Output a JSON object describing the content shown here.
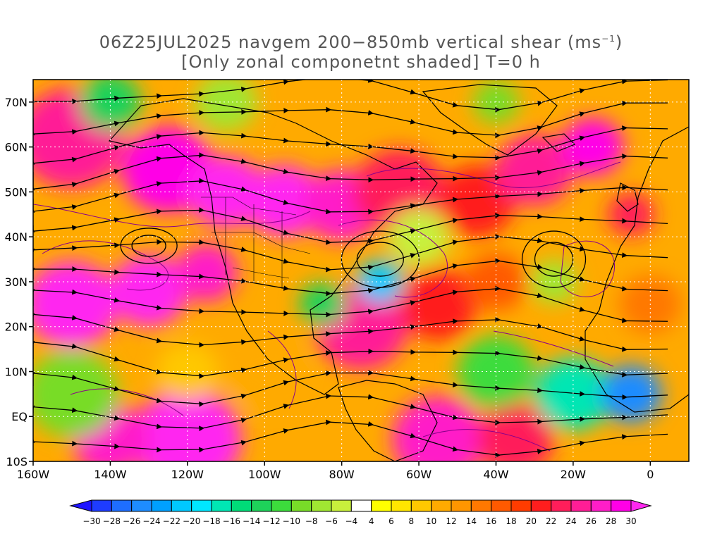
{
  "title": {
    "line1_prefix": "06Z25JUL2025 navgem 200−850mb vertical shear (ms",
    "line1_sup": "−1",
    "line1_suffix": ")",
    "line2": "[Only zonal componetnt shaded] T=0 h"
  },
  "map": {
    "lon_range": [
      -160,
      10
    ],
    "lat_range": [
      -10,
      75
    ],
    "lat_ticks": [
      {
        "value": 70,
        "label": "70N"
      },
      {
        "value": 60,
        "label": "60N"
      },
      {
        "value": 50,
        "label": "50N"
      },
      {
        "value": 40,
        "label": "40N"
      },
      {
        "value": 30,
        "label": "30N"
      },
      {
        "value": 20,
        "label": "20N"
      },
      {
        "value": 10,
        "label": "10N"
      },
      {
        "value": 0,
        "label": "EQ"
      },
      {
        "value": -10,
        "label": "10S"
      }
    ],
    "lon_ticks": [
      {
        "value": -160,
        "label": "160W"
      },
      {
        "value": -140,
        "label": "140W"
      },
      {
        "value": -120,
        "label": "120W"
      },
      {
        "value": -100,
        "label": "100W"
      },
      {
        "value": -80,
        "label": "80W"
      },
      {
        "value": -60,
        "label": "60W"
      },
      {
        "value": -40,
        "label": "40W"
      },
      {
        "value": -20,
        "label": "20W"
      },
      {
        "value": 0,
        "label": "0"
      }
    ],
    "shear_blobs": [
      {
        "lon": -150,
        "lat": 62,
        "r": 14,
        "v": 24
      },
      {
        "lon": -125,
        "lat": 55,
        "r": 12,
        "v": 28
      },
      {
        "lon": -110,
        "lat": 50,
        "r": 10,
        "v": 30
      },
      {
        "lon": -95,
        "lat": 48,
        "r": 10,
        "v": 30
      },
      {
        "lon": -80,
        "lat": 47,
        "r": 10,
        "v": 26
      },
      {
        "lon": -65,
        "lat": 50,
        "r": 12,
        "v": 22
      },
      {
        "lon": -45,
        "lat": 48,
        "r": 10,
        "v": 20
      },
      {
        "lon": -30,
        "lat": 55,
        "r": 10,
        "v": 24
      },
      {
        "lon": -15,
        "lat": 60,
        "r": 8,
        "v": 28
      },
      {
        "lon": -5,
        "lat": 45,
        "r": 6,
        "v": 22
      },
      {
        "lon": -150,
        "lat": 25,
        "r": 12,
        "v": 30
      },
      {
        "lon": -130,
        "lat": 28,
        "r": 10,
        "v": 30
      },
      {
        "lon": -115,
        "lat": 32,
        "r": 8,
        "v": 26
      },
      {
        "lon": -75,
        "lat": 20,
        "r": 12,
        "v": 24
      },
      {
        "lon": -55,
        "lat": 25,
        "r": 10,
        "v": 20
      },
      {
        "lon": -40,
        "lat": 30,
        "r": 8,
        "v": 16
      },
      {
        "lon": -120,
        "lat": -5,
        "r": 14,
        "v": 30
      },
      {
        "lon": -140,
        "lat": -5,
        "r": 10,
        "v": 26
      },
      {
        "lon": -55,
        "lat": -5,
        "r": 12,
        "v": 26
      },
      {
        "lon": -35,
        "lat": -5,
        "r": 10,
        "v": 22
      },
      {
        "lon": -100,
        "lat": 10,
        "r": 10,
        "v": 10
      },
      {
        "lon": -150,
        "lat": 5,
        "r": 12,
        "v": -10
      },
      {
        "lon": -120,
        "lat": 10,
        "r": 8,
        "v": 8
      },
      {
        "lon": -60,
        "lat": 40,
        "r": 8,
        "v": -6
      },
      {
        "lon": -70,
        "lat": 30,
        "r": 6,
        "v": -22
      },
      {
        "lon": -85,
        "lat": 25,
        "r": 6,
        "v": -14
      },
      {
        "lon": -40,
        "lat": 10,
        "r": 10,
        "v": -12
      },
      {
        "lon": -20,
        "lat": 5,
        "r": 10,
        "v": -18
      },
      {
        "lon": -5,
        "lat": 5,
        "r": 8,
        "v": -26
      },
      {
        "lon": -25,
        "lat": 30,
        "r": 6,
        "v": -8
      },
      {
        "lon": -140,
        "lat": 70,
        "r": 8,
        "v": -14
      },
      {
        "lon": -110,
        "lat": 70,
        "r": 8,
        "v": -8
      },
      {
        "lon": -40,
        "lat": 70,
        "r": 6,
        "v": -10
      },
      {
        "lon": 0,
        "lat": 25,
        "r": 8,
        "v": 14
      }
    ]
  },
  "colorbar": {
    "labels": [
      "−30",
      "−28",
      "−26",
      "−24",
      "−22",
      "−20",
      "−18",
      "−16",
      "−14",
      "−12",
      "−10",
      "−8",
      "−6",
      "−4",
      "4",
      "6",
      "8",
      "10",
      "12",
      "14",
      "16",
      "18",
      "20",
      "22",
      "24",
      "26",
      "28",
      "30"
    ],
    "colors": [
      "#1e3cff",
      "#1e6eff",
      "#1e8cff",
      "#00a0ff",
      "#00c8ff",
      "#00e6ff",
      "#00e6b4",
      "#00dc78",
      "#1ed25a",
      "#3cdc3c",
      "#78dc28",
      "#a0e632",
      "#c8f03c",
      "#ffffff",
      "#ffff00",
      "#ffe600",
      "#ffc800",
      "#ffaa00",
      "#ff9600",
      "#ff7800",
      "#ff5a00",
      "#ff3c00",
      "#ff1e1e",
      "#ff1e5a",
      "#ff1e96",
      "#ff1ec8",
      "#ff00e6"
    ],
    "below_color": "#1e14ff",
    "above_color": "#ff28f0"
  }
}
